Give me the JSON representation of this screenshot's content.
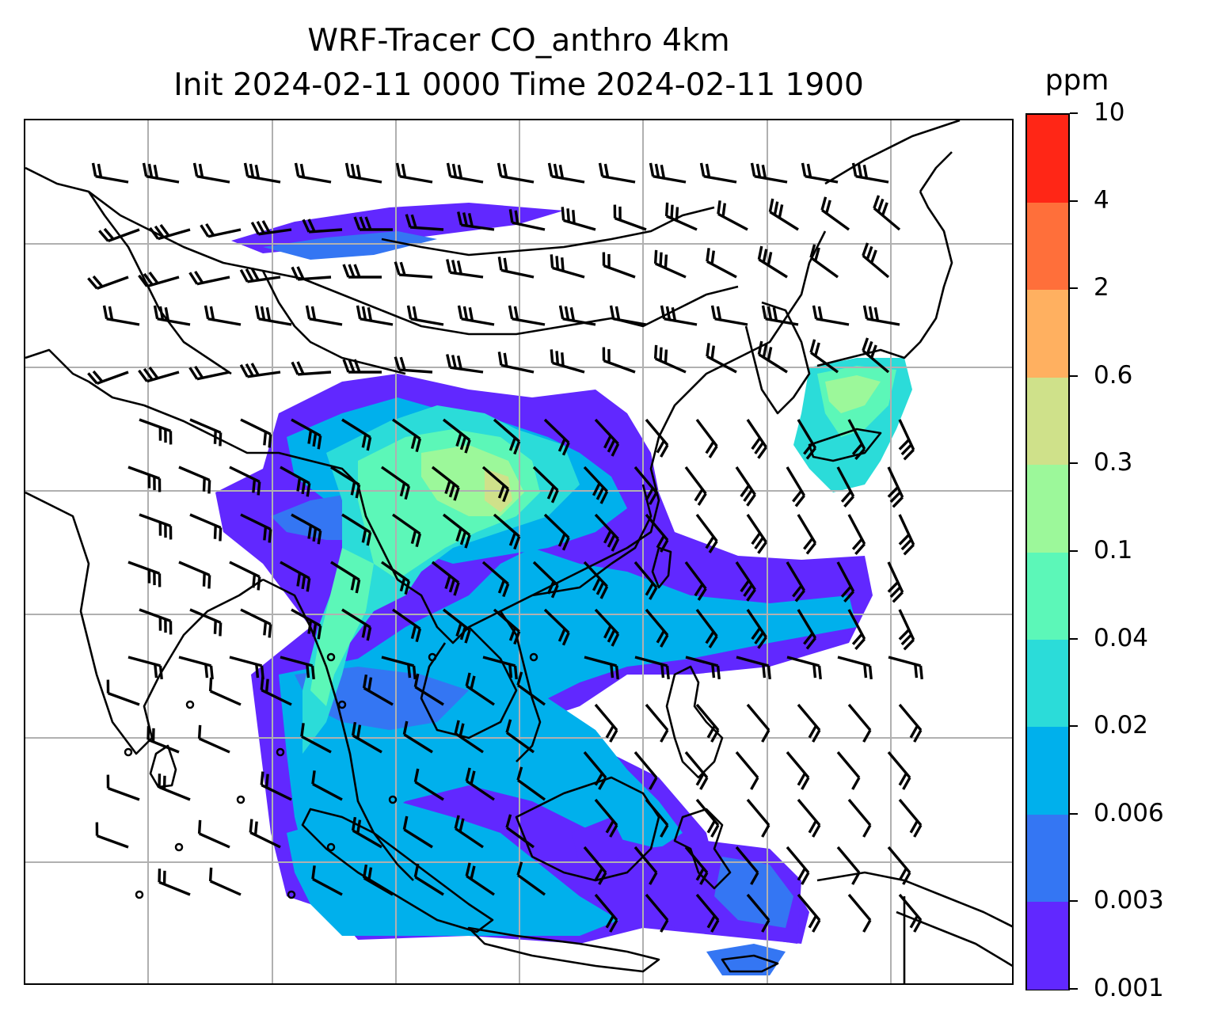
{
  "title": {
    "line1": "WRF-Tracer CO_anthro 4km",
    "line2": "Init 2024-02-11 0000 Time 2024-02-11 1900"
  },
  "colorbar": {
    "unit": "ppm",
    "levels": [
      "0.001",
      "0.003",
      "0.006",
      "0.02",
      "0.04",
      "0.1",
      "0.3",
      "0.6",
      "2",
      "4",
      "10"
    ],
    "colors": [
      "#6128ff",
      "#3476f3",
      "#00b0ec",
      "#2bdcd9",
      "#5cf7b8",
      "#9cf89a",
      "#cfe18a",
      "#ffb060",
      "#ff6f3a",
      "#ff2616"
    ]
  },
  "map": {
    "variable": "CO_anthro",
    "gridlines": true,
    "coastlines": true,
    "wind_barbs": true,
    "grid_color": "#b0b0b0"
  }
}
